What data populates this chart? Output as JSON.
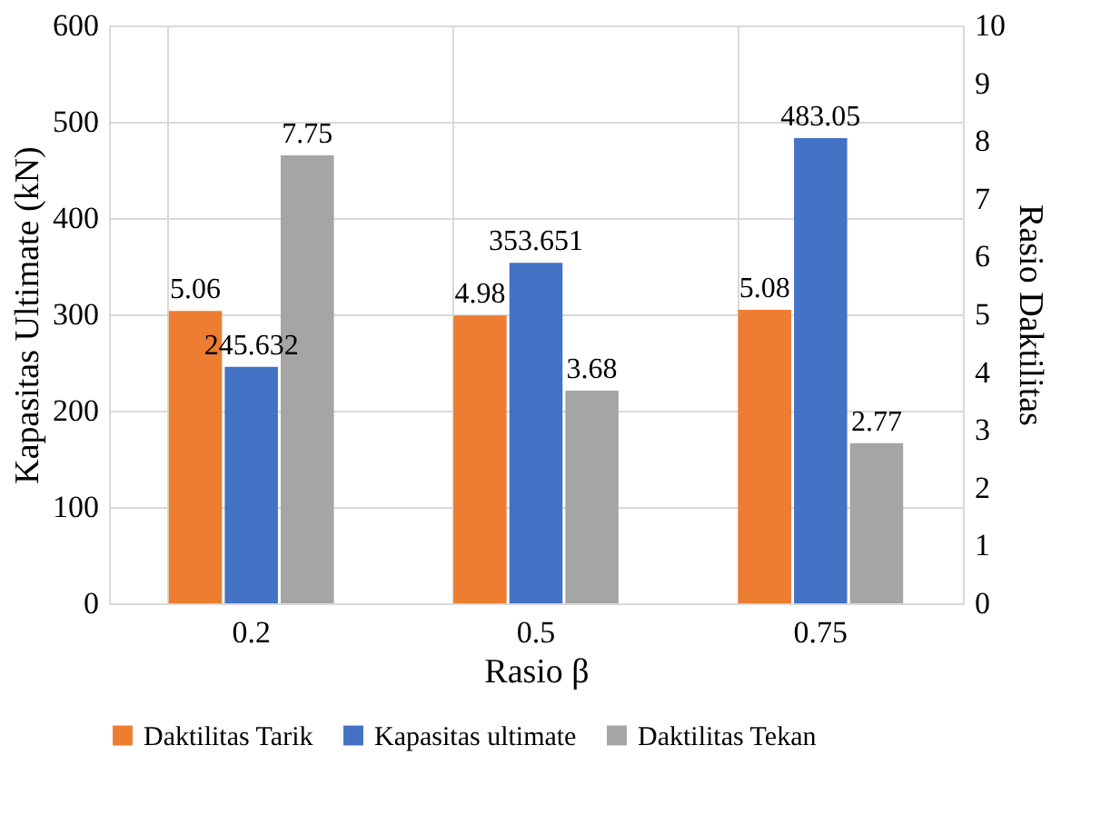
{
  "chart_data": {
    "type": "bar",
    "categories": [
      "0.2",
      "0.5",
      "0.75"
    ],
    "series": [
      {
        "name": "Daktilitas Tarik",
        "color": "#ed7d31",
        "values": [
          5.06,
          4.98,
          5.08
        ],
        "axis": "y2"
      },
      {
        "name": "Kapasitas ultimate",
        "color": "#4472c4",
        "values": [
          245.632,
          353.651,
          483.05
        ]
      },
      {
        "name": "Daktilitas Tekan",
        "color": "#a5a5a5",
        "values": [
          7.75,
          3.68,
          2.77
        ],
        "axis": "y2"
      }
    ],
    "xlabel": "Rasio β",
    "ylabel": "Kapasitas Ultimate (kN)",
    "y2label": "Rasio Daktilitas",
    "ylim": [
      0,
      600
    ],
    "yticks": [
      0,
      100,
      200,
      300,
      400,
      500,
      600
    ],
    "y2lim": [
      0,
      10
    ],
    "y2ticks": [
      0,
      1,
      2,
      3,
      4,
      5,
      6,
      7,
      8,
      9,
      10
    ],
    "data_labels": true,
    "grid": true,
    "legend": "bottom"
  }
}
